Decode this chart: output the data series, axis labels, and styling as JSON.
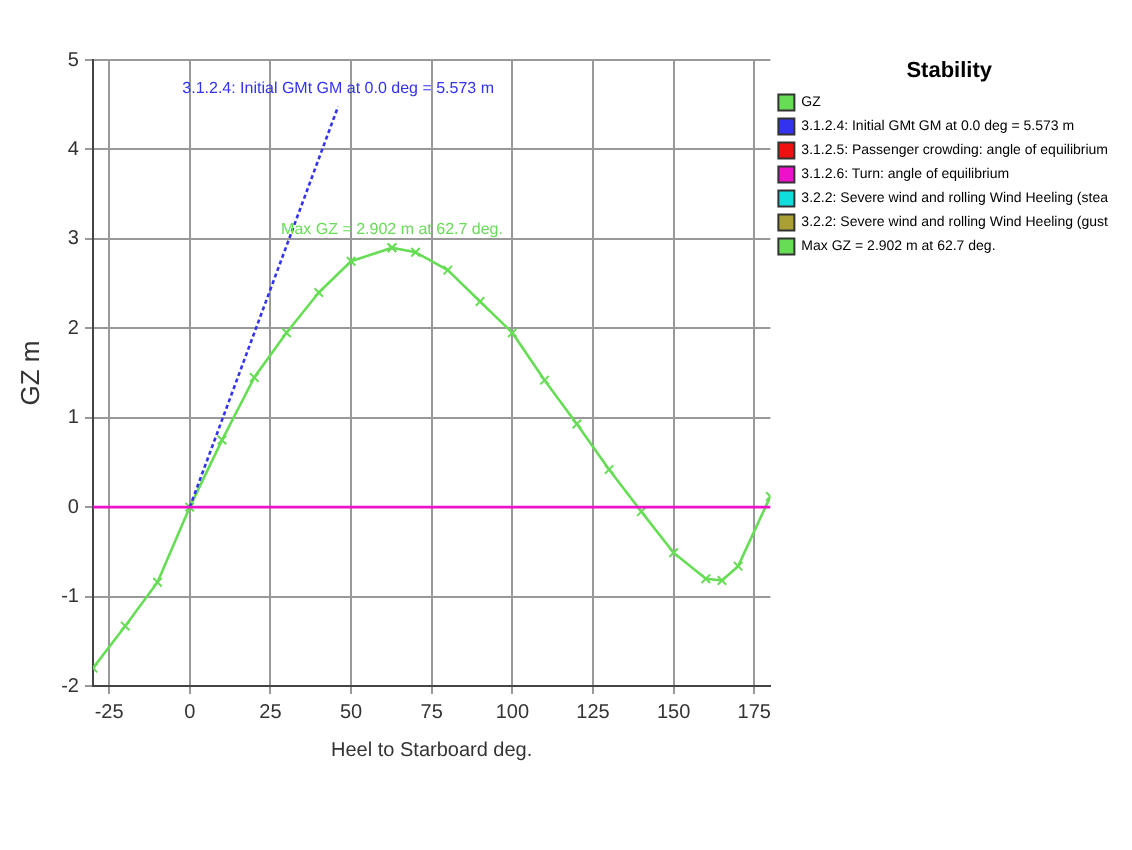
{
  "chart_data": {
    "type": "line",
    "xlabel": "Heel to Starboard deg.",
    "ylabel": "GZ m",
    "legend_title": "Stability",
    "legend": "right",
    "grid": true,
    "xlim": [
      -30,
      180
    ],
    "xticks": [
      -25,
      0,
      25,
      50,
      75,
      100,
      125,
      150,
      175
    ],
    "ylim": [
      -2,
      5
    ],
    "yticks": [
      -2,
      -1,
      0,
      1,
      2,
      3,
      4,
      5
    ],
    "series": [
      {
        "name": "GZ",
        "color": "#66dd55",
        "marker": "cross",
        "x": [
          -30,
          -20,
          -10,
          0,
          10,
          20,
          30,
          40,
          50,
          62.7,
          70,
          80,
          90,
          100,
          110,
          120,
          130,
          140,
          150,
          160,
          165,
          170,
          180
        ],
        "values": [
          -1.8,
          -1.33,
          -0.84,
          0,
          0.75,
          1.45,
          1.95,
          2.4,
          2.75,
          2.9,
          2.85,
          2.65,
          2.3,
          1.95,
          1.42,
          0.93,
          0.42,
          -0.05,
          -0.51,
          -0.8,
          -0.82,
          -0.66,
          0.12
        ]
      },
      {
        "name": "3.1.2.4: Initial GMt GM at 0.0 deg = 5.573 m",
        "color": "#3333ee",
        "line_style": "dotted",
        "x": [
          0,
          46
        ],
        "values": [
          0,
          4.48
        ]
      },
      {
        "name": "3.1.2.5: Passenger crowding: angle of equilibrium",
        "color": "#ee1111"
      },
      {
        "name": "3.1.2.6: Turn: angle of equilibrium",
        "color": "#ee11cc",
        "x": [
          -30,
          180
        ],
        "values": [
          0,
          0
        ]
      },
      {
        "name": "3.2.2: Severe wind and rolling Wind Heeling (stea",
        "color": "#11dddd"
      },
      {
        "name": "3.2.2: Severe wind and rolling Wind Heeling (gust",
        "color": "#aaa033"
      },
      {
        "name": "Max GZ = 2.902 m at 62.7 deg.",
        "color": "#66dd55",
        "marker": "cross",
        "x": [
          62.7
        ],
        "values": [
          2.902
        ]
      }
    ],
    "annotations": [
      {
        "text": "3.1.2.4: Initial GMt GM at 0.0 deg = 5.573 m",
        "x": 46,
        "y": 4.48
      },
      {
        "text": "Max GZ = 2.902 m at 62.7 deg.",
        "x": 62.7,
        "y": 2.902
      }
    ]
  }
}
